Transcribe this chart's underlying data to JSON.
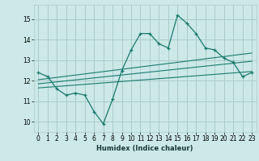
{
  "title": "",
  "xlabel": "Humidex (Indice chaleur)",
  "background_color": "#cce8e8",
  "grid_color": "#aacccc",
  "line_color": "#1a7a6e",
  "xlim": [
    -0.5,
    23.5
  ],
  "ylim": [
    9.5,
    15.7
  ],
  "yticks": [
    10,
    11,
    12,
    13,
    14,
    15
  ],
  "xticks": [
    0,
    1,
    2,
    3,
    4,
    5,
    6,
    7,
    8,
    9,
    10,
    11,
    12,
    13,
    14,
    15,
    16,
    17,
    18,
    19,
    20,
    21,
    22,
    23
  ],
  "series_main": {
    "x": [
      0,
      1,
      2,
      3,
      4,
      5,
      6,
      7,
      8,
      9,
      10,
      11,
      12,
      13,
      14,
      15,
      16,
      17,
      18,
      19,
      20,
      21,
      22,
      23
    ],
    "y": [
      12.4,
      12.2,
      11.6,
      11.3,
      11.4,
      11.3,
      10.5,
      9.9,
      11.1,
      12.5,
      13.5,
      14.3,
      14.3,
      13.8,
      13.6,
      15.2,
      14.8,
      14.3,
      13.6,
      13.5,
      13.1,
      12.9,
      12.2,
      12.4
    ]
  },
  "series_linear1": {
    "x": [
      0,
      23
    ],
    "y": [
      12.05,
      13.35
    ]
  },
  "series_linear2": {
    "x": [
      0,
      23
    ],
    "y": [
      11.85,
      12.95
    ]
  },
  "series_linear3": {
    "x": [
      0,
      23
    ],
    "y": [
      11.65,
      12.45
    ]
  }
}
